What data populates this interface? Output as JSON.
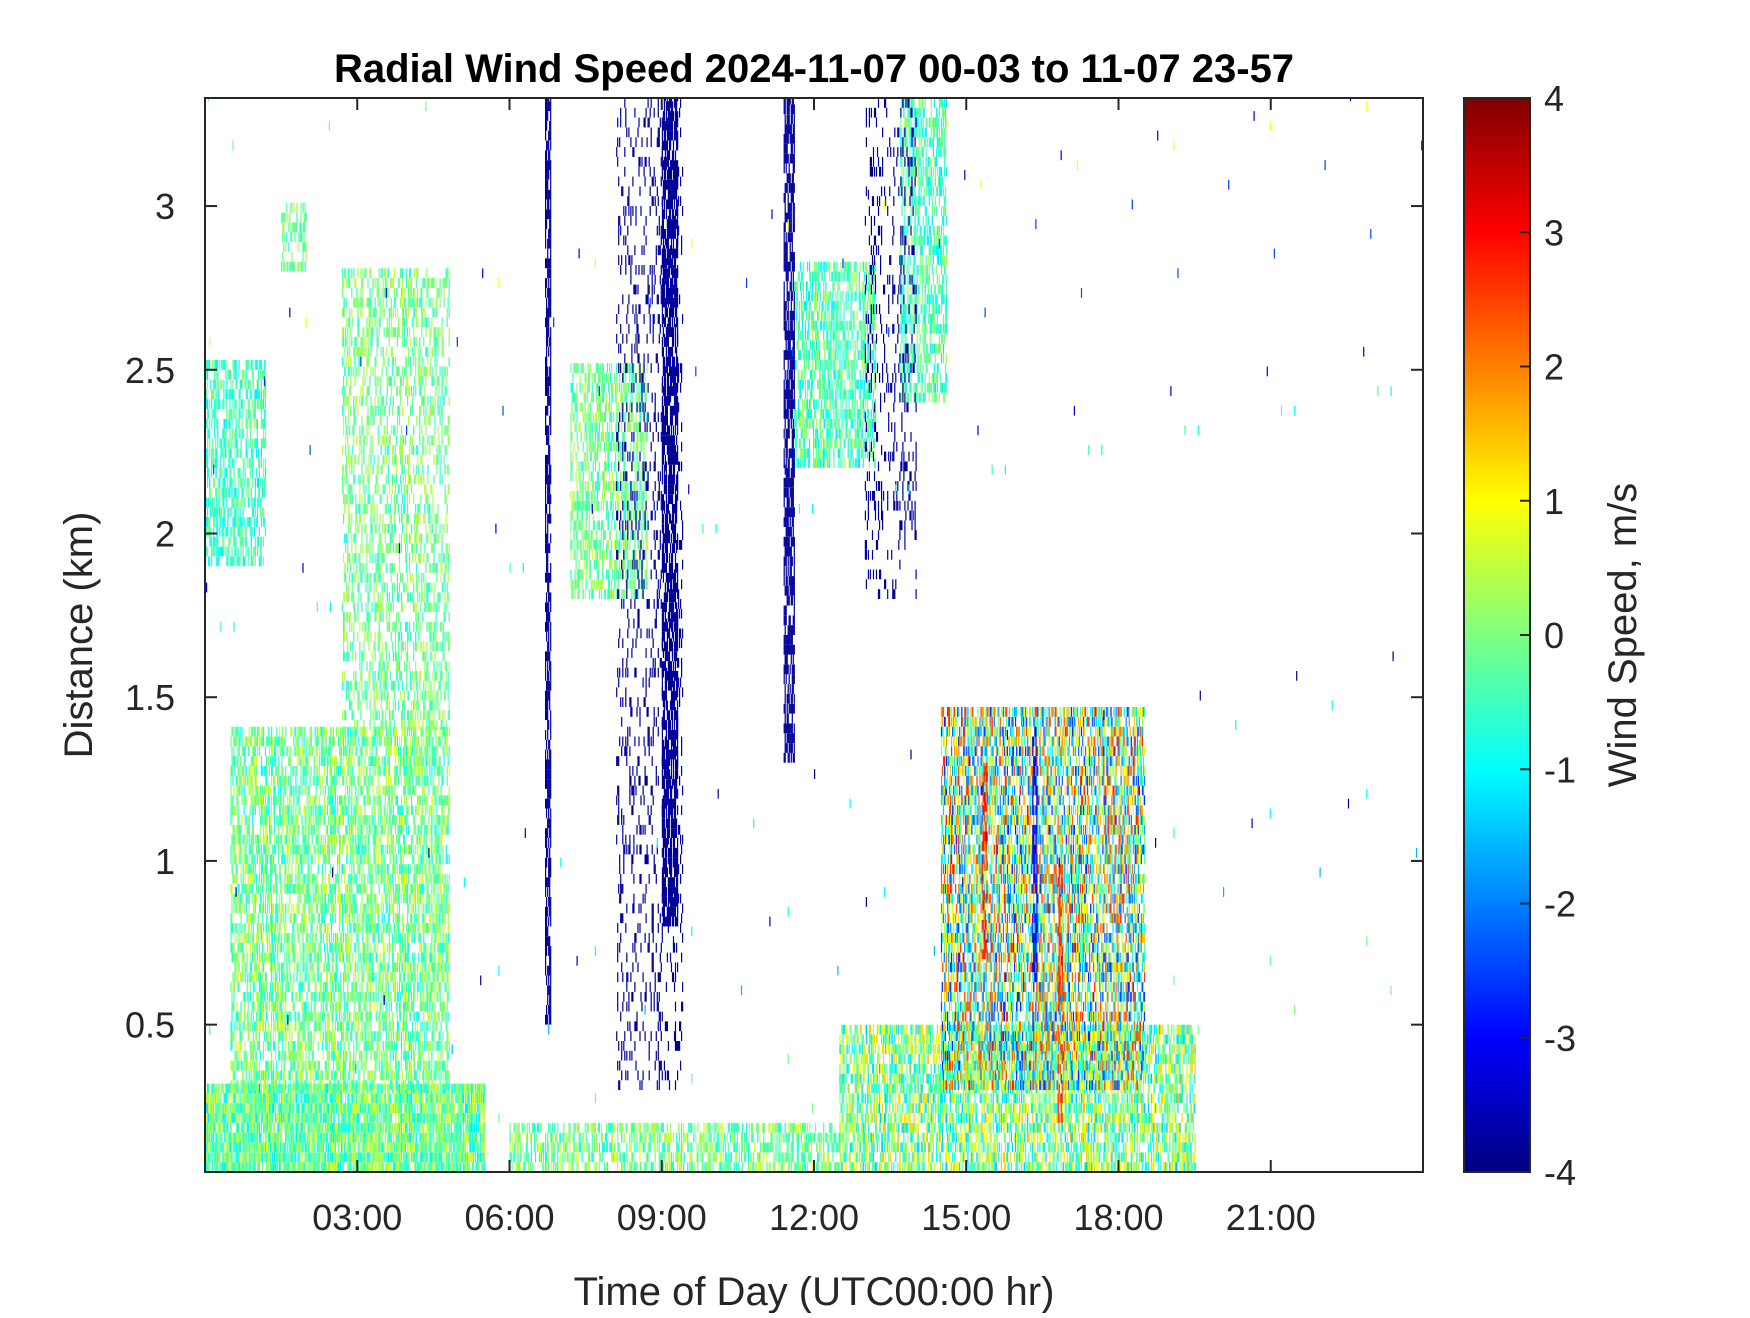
{
  "chart_data": {
    "type": "heatmap",
    "title": "Radial Wind Speed 2024-11-07 00-03 to 11-07 23-57",
    "xlabel": "Time of Day (UTC00:00 hr)",
    "ylabel": "Distance (km)",
    "xlim": [
      0,
      24
    ],
    "ylim": [
      0.05,
      3.33
    ],
    "x_ticks": [
      3,
      6,
      9,
      12,
      15,
      18,
      21
    ],
    "x_tick_labels": [
      "03:00",
      "06:00",
      "09:00",
      "12:00",
      "15:00",
      "18:00",
      "21:00"
    ],
    "y_ticks": [
      0.5,
      1,
      1.5,
      2,
      2.5,
      3
    ],
    "y_tick_labels": [
      "0.5",
      "1",
      "1.5",
      "2",
      "2.5",
      "3"
    ],
    "colorbar": {
      "label": "Wind Speed, m/s",
      "limits": [
        -4,
        4
      ],
      "ticks": [
        4,
        3,
        2,
        1,
        0,
        -1,
        -2,
        -3,
        -4
      ],
      "tick_labels": [
        "4",
        "3",
        "2",
        "1",
        "0",
        "-1",
        "-2",
        "-3",
        "-4"
      ],
      "colormap": "jet"
    },
    "grid": false,
    "regions": [
      {
        "x": [
          0.0,
          5.5
        ],
        "y": [
          0.05,
          0.3
        ],
        "v": [
          -1.2,
          0.8
        ],
        "density": 0.85
      },
      {
        "x": [
          0.5,
          4.8
        ],
        "y": [
          0.3,
          1.4
        ],
        "v": [
          -1.0,
          0.8
        ],
        "density": 0.55
      },
      {
        "x": [
          0.0,
          1.2
        ],
        "y": [
          1.9,
          2.5
        ],
        "v": [
          -1.2,
          0.2
        ],
        "density": 0.5
      },
      {
        "x": [
          1.5,
          2.0
        ],
        "y": [
          2.8,
          3.0
        ],
        "v": [
          -0.8,
          0.5
        ],
        "density": 0.4
      },
      {
        "x": [
          2.7,
          4.8
        ],
        "y": [
          1.4,
          2.8
        ],
        "v": [
          -0.8,
          0.6
        ],
        "density": 0.35
      },
      {
        "x": [
          7.2,
          8.7
        ],
        "y": [
          1.8,
          2.5
        ],
        "v": [
          -0.8,
          0.6
        ],
        "density": 0.45
      },
      {
        "x": [
          11.6,
          13.2
        ],
        "y": [
          2.2,
          2.8
        ],
        "v": [
          -1.2,
          0.4
        ],
        "density": 0.55
      },
      {
        "x": [
          13.7,
          14.6
        ],
        "y": [
          2.4,
          3.3
        ],
        "v": [
          -1.2,
          0.4
        ],
        "density": 0.5
      },
      {
        "x": [
          6.0,
          12.5
        ],
        "y": [
          0.05,
          0.2
        ],
        "v": [
          -1.0,
          0.8
        ],
        "density": 0.5
      },
      {
        "x": [
          12.5,
          19.5
        ],
        "y": [
          0.05,
          0.5
        ],
        "v": [
          -1.5,
          1.5
        ],
        "density": 0.6
      },
      {
        "x": [
          14.5,
          18.5
        ],
        "y": [
          0.3,
          1.45
        ],
        "v": [
          -2.8,
          2.8
        ],
        "density": 0.6
      },
      {
        "x": [
          6.7,
          6.8
        ],
        "y": [
          0.5,
          3.33
        ],
        "v": [
          -4.0,
          -3.6
        ],
        "density": 0.7
      },
      {
        "x": [
          9.0,
          9.3
        ],
        "y": [
          0.8,
          3.33
        ],
        "v": [
          -4.0,
          -3.6
        ],
        "density": 0.7
      },
      {
        "x": [
          11.4,
          11.6
        ],
        "y": [
          1.3,
          3.33
        ],
        "v": [
          -4.0,
          -3.6
        ],
        "density": 0.7
      },
      {
        "x": [
          8.1,
          9.4
        ],
        "y": [
          0.3,
          3.33
        ],
        "v": [
          -4.0,
          -3.6
        ],
        "density": 0.15
      },
      {
        "x": [
          13.0,
          14.0
        ],
        "y": [
          1.8,
          3.33
        ],
        "v": [
          -4.0,
          -3.6
        ],
        "density": 0.15
      },
      {
        "x": [
          15.3,
          15.4
        ],
        "y": [
          0.7,
          1.3
        ],
        "v": [
          2.0,
          3.5
        ],
        "density": 0.6
      },
      {
        "x": [
          16.3,
          16.4
        ],
        "y": [
          0.6,
          1.4
        ],
        "v": [
          -3.5,
          -2.5
        ],
        "density": 0.6
      },
      {
        "x": [
          16.8,
          16.9
        ],
        "y": [
          0.2,
          1.0
        ],
        "v": [
          2.0,
          3.0
        ],
        "density": 0.5
      },
      {
        "x": [
          0.0,
          24.0
        ],
        "y": [
          0.05,
          3.33
        ],
        "v": [
          -4.0,
          1.0
        ],
        "density": 0.001
      }
    ]
  }
}
